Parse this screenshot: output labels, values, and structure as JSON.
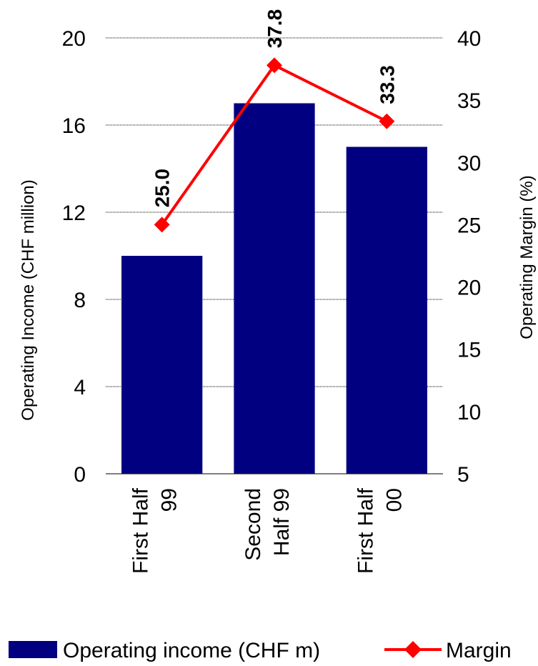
{
  "chart_data": {
    "type": "bar",
    "categories": [
      [
        "First Half",
        "99"
      ],
      [
        "Second",
        "Half 99"
      ],
      [
        "First Half",
        "00"
      ]
    ],
    "series": [
      {
        "name": "Operating income (CHF m)",
        "type": "bar",
        "axis": "left",
        "values": [
          10,
          17,
          15
        ],
        "color": "#000080"
      },
      {
        "name": "Margin",
        "type": "line",
        "axis": "right",
        "values": [
          25.0,
          37.8,
          33.3
        ],
        "color": "#ff0000",
        "data_labels": [
          "25.0",
          "37.8",
          "33.3"
        ]
      }
    ],
    "y_left": {
      "label": "Operating Income (CHF million)",
      "ylim": [
        0,
        20
      ],
      "ticks": [
        "0",
        "4",
        "8",
        "12",
        "16",
        "20"
      ]
    },
    "y_right": {
      "label": "Operating Margin (%)",
      "ylim": [
        5,
        40
      ],
      "ticks": [
        "5",
        "10",
        "15",
        "20",
        "25",
        "30",
        "35",
        "40"
      ]
    },
    "grid": true,
    "legend": "bottom"
  }
}
